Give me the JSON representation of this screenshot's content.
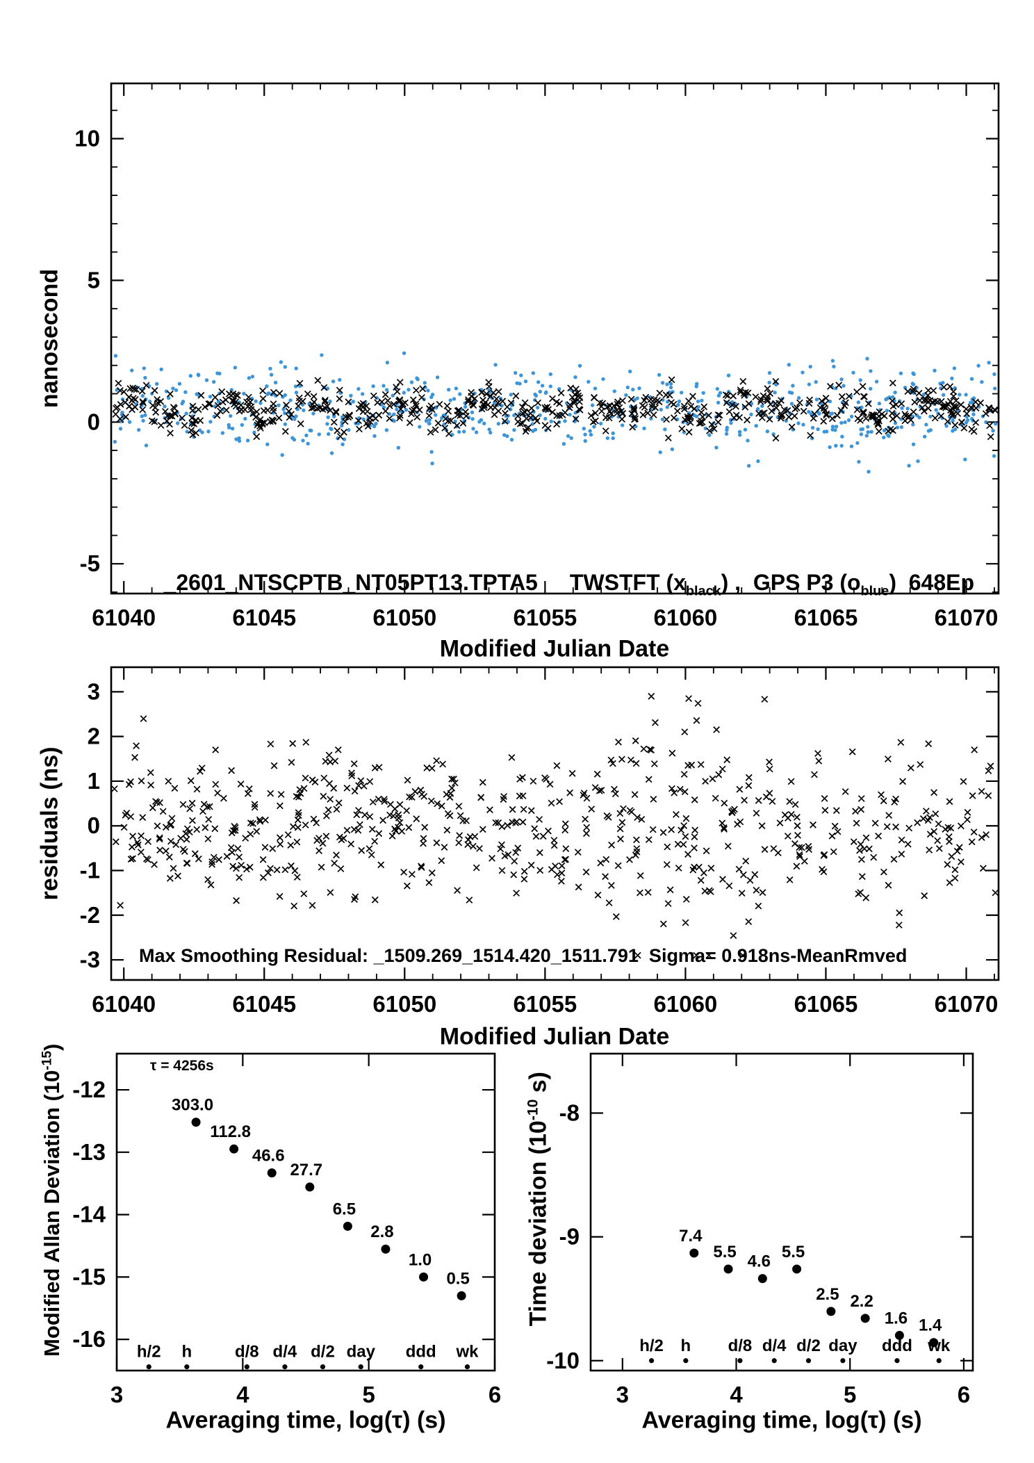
{
  "colors": {
    "black": "#000000",
    "blue": "#3d95d8",
    "red": "#e60000",
    "axis": "#000000",
    "background": "#ffffff"
  },
  "chart_data": [
    {
      "type": "scatter",
      "name": "time-transfer-comparison",
      "xlabel": "Modified Julian Date",
      "ylabel": "nanosecond",
      "xlim": [
        61039.55,
        61071.15
      ],
      "ylim": [
        -6.05,
        11.95
      ],
      "xticks": [
        61040,
        61045,
        61050,
        61055,
        61060,
        61065,
        61070
      ],
      "xminor_step": 1,
      "yticks": [
        -5,
        0,
        5,
        10
      ],
      "yminor_step": 1,
      "legend": {
        "id": "_2601_NTSCPTB_NT05PT13.TPTA5",
        "series1_prefix": "TWSTFT (x",
        "series1_sub": "black",
        "mid": ") ,  GPS P3 (o",
        "series2_sub": "blue",
        "suffix": ")  648Ep"
      },
      "series": [
        {
          "name": "GPS P3",
          "marker": "dot",
          "color": "#3d95d8",
          "n": 650,
          "seed": 77,
          "x_range": [
            61039.65,
            61071.05
          ],
          "mean": 0.45,
          "std": 0.72,
          "wave_amp": 0.15,
          "wave_freq": 1.35,
          "clip": [
            -1.75,
            2.85
          ]
        },
        {
          "name": "TWSTFT",
          "marker": "x",
          "color": "#000000",
          "n": 600,
          "seed": 11,
          "x_range": [
            61039.65,
            61071.05
          ],
          "mean": 0.45,
          "std": 0.34,
          "wave_amp": 0.28,
          "wave_freq": 2.0,
          "clip": [
            -0.95,
            1.95
          ]
        }
      ]
    },
    {
      "type": "scatter",
      "name": "smoothing-residuals",
      "xlabel": "Modified Julian Date",
      "ylabel": "residuals (ns)",
      "annotation": "Max Smoothing Residual: _1509.269_1514.420_1511.791  Sigma= 0.918ns-MeanRmved",
      "xlim": [
        61039.55,
        61071.15
      ],
      "ylim": [
        -3.45,
        3.55
      ],
      "xticks": [
        61040,
        61045,
        61050,
        61055,
        61060,
        61065,
        61070
      ],
      "xminor_step": 1,
      "yticks": [
        -3,
        -2,
        -1,
        0,
        1,
        2,
        3
      ],
      "yminor_step": 0,
      "series": [
        {
          "name": "residuals",
          "marker": "x",
          "color": "#000000",
          "n": 640,
          "seed": 5,
          "x_range": [
            61039.65,
            61071.05
          ],
          "mean": 0.0,
          "std": 0.82,
          "wave_amp": 0.1,
          "wave_freq": 1.1,
          "clip": [
            -2.9,
            2.9
          ],
          "bump": {
            "center": 61060,
            "width": 3.2,
            "amp": 0.5
          }
        }
      ]
    },
    {
      "type": "scatter",
      "name": "modified-allan-deviation",
      "xlabel": "Averaging time, log(τ) (s)",
      "ylabel": "Modified Allan Deviation (10^-15)",
      "ylabel_parts": {
        "prefix": "Modified Allan Deviation (10",
        "sup": "-15",
        "suffix": ")"
      },
      "annotation": "τ = 4256s",
      "xlim": [
        3,
        6
      ],
      "ylim": [
        -16.5,
        -11.42
      ],
      "xticks": [
        3,
        4,
        5,
        6
      ],
      "xminor_step": 0,
      "yticks": [
        -12,
        -13,
        -14,
        -15,
        -16
      ],
      "yminor_step": 0,
      "points": [
        {
          "log_tau": 3.629,
          "value": 303.0,
          "log_dev": -12.519
        },
        {
          "log_tau": 3.93,
          "value": 112.8,
          "log_dev": -12.948
        },
        {
          "log_tau": 4.231,
          "value": 46.6,
          "log_dev": -13.332
        },
        {
          "log_tau": 4.532,
          "value": 27.7,
          "log_dev": -13.558
        },
        {
          "log_tau": 4.833,
          "value": 6.5,
          "log_dev": -14.187
        },
        {
          "log_tau": 5.134,
          "value": 2.8,
          "log_dev": -14.553
        },
        {
          "log_tau": 5.435,
          "value": 1.0,
          "log_dev": -15.0
        },
        {
          "log_tau": 5.736,
          "value": 0.5,
          "log_dev": -15.301
        }
      ],
      "value_label_fmt": [
        "303.0",
        "112.8",
        "46.6",
        "27.7",
        "6.5",
        "2.8",
        "1.0",
        "0.5"
      ],
      "time_marks": [
        {
          "label": "h/2",
          "log_tau": 3.255
        },
        {
          "label": "h",
          "log_tau": 3.556
        },
        {
          "label": "d/8",
          "log_tau": 4.033
        },
        {
          "label": "d/4",
          "log_tau": 4.334
        },
        {
          "label": "d/2",
          "log_tau": 4.635
        },
        {
          "label": "day",
          "log_tau": 4.937
        },
        {
          "label": "ddd",
          "log_tau": 5.414
        },
        {
          "label": "wk",
          "log_tau": 5.782
        }
      ],
      "marks_y": -16.44
    },
    {
      "type": "scatter",
      "name": "time-deviation",
      "xlabel": "Averaging time, log(τ) (s)",
      "ylabel": "Time deviation (10^-10 s)",
      "ylabel_parts": {
        "prefix": "Time deviation (10",
        "sup": "-10",
        "suffix": " s)"
      },
      "xlim": [
        2.72,
        6.08
      ],
      "ylim": [
        -10.08,
        -7.52
      ],
      "xticks": [
        3,
        4,
        5,
        6
      ],
      "xminor_step": 0,
      "yticks": [
        -8,
        -9,
        -10
      ],
      "yminor_step": 0,
      "points": [
        {
          "log_tau": 3.629,
          "value": 7.4,
          "log_dev": -9.131
        },
        {
          "log_tau": 3.93,
          "value": 5.5,
          "log_dev": -9.26
        },
        {
          "log_tau": 4.231,
          "value": 4.6,
          "log_dev": -9.337
        },
        {
          "log_tau": 4.532,
          "value": 5.5,
          "log_dev": -9.26
        },
        {
          "log_tau": 4.833,
          "value": 2.5,
          "log_dev": -9.602
        },
        {
          "log_tau": 5.134,
          "value": 2.2,
          "log_dev": -9.658
        },
        {
          "log_tau": 5.435,
          "value": 1.6,
          "log_dev": -9.796
        },
        {
          "log_tau": 5.736,
          "value": 1.4,
          "log_dev": -9.854
        }
      ],
      "value_label_fmt": [
        "7.4",
        "5.5",
        "4.6",
        "5.5",
        "2.5",
        "2.2",
        "1.6",
        "1.4"
      ],
      "time_marks": [
        {
          "label": "h/2",
          "log_tau": 3.255
        },
        {
          "label": "h",
          "log_tau": 3.556
        },
        {
          "label": "d/8",
          "log_tau": 4.033
        },
        {
          "label": "d/4",
          "log_tau": 4.334
        },
        {
          "label": "d/2",
          "log_tau": 4.635
        },
        {
          "label": "day",
          "log_tau": 4.937
        },
        {
          "label": "ddd",
          "log_tau": 5.414
        },
        {
          "label": "wk",
          "log_tau": 5.782
        }
      ],
      "marks_y": -10.0
    }
  ]
}
